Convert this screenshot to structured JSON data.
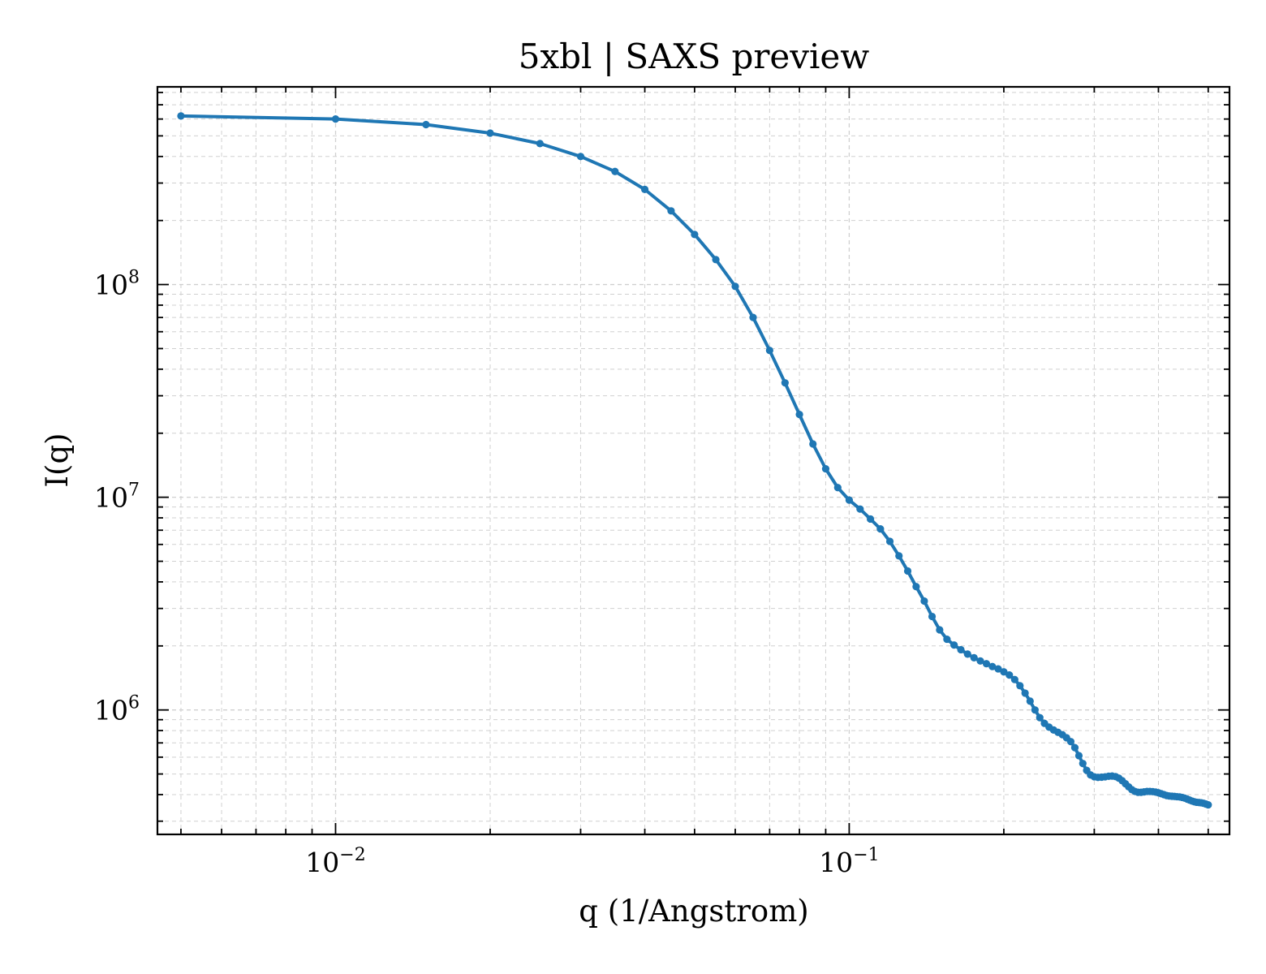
{
  "chart_data": {
    "type": "line",
    "title": "5xbl | SAXS preview",
    "xlabel": "q (1/Angstrom)",
    "ylabel": "I(q)",
    "xscale": "log",
    "yscale": "log",
    "xlim": [
      0.0045,
      0.55
    ],
    "ylim": [
      260000,
      850000000
    ],
    "grid": true,
    "legend": "none",
    "x_ticks": [
      {
        "base": "10",
        "exp": "−2",
        "value": 0.01
      },
      {
        "base": "10",
        "exp": "−1",
        "value": 0.1
      }
    ],
    "y_ticks": [
      {
        "base": "10",
        "exp": "6",
        "value": 1000000
      },
      {
        "base": "10",
        "exp": "7",
        "value": 10000000
      },
      {
        "base": "10",
        "exp": "8",
        "value": 100000000
      }
    ],
    "series": [
      {
        "color": "#1f77b4",
        "points": [
          [
            0.005,
            620000000
          ],
          [
            0.01,
            600000000
          ],
          [
            0.015,
            565000000
          ],
          [
            0.02,
            515000000
          ],
          [
            0.025,
            460000000
          ],
          [
            0.03,
            400000000
          ],
          [
            0.035,
            340000000
          ],
          [
            0.04,
            280000000
          ],
          [
            0.045,
            222000000
          ],
          [
            0.05,
            172000000
          ],
          [
            0.055,
            131000000
          ],
          [
            0.06,
            98000000
          ],
          [
            0.065,
            70000000
          ],
          [
            0.07,
            49000000
          ],
          [
            0.075,
            34500000
          ],
          [
            0.08,
            24500000
          ],
          [
            0.085,
            17800000
          ],
          [
            0.09,
            13600000
          ],
          [
            0.095,
            11100000
          ],
          [
            0.1,
            9700000
          ],
          [
            0.105,
            8800000
          ],
          [
            0.11,
            7900000
          ],
          [
            0.115,
            7100000
          ],
          [
            0.12,
            6200000
          ],
          [
            0.125,
            5300000
          ],
          [
            0.13,
            4500000
          ],
          [
            0.135,
            3800000
          ],
          [
            0.14,
            3250000
          ],
          [
            0.145,
            2750000
          ],
          [
            0.15,
            2380000
          ],
          [
            0.155,
            2150000
          ],
          [
            0.16,
            2020000
          ],
          [
            0.165,
            1920000
          ],
          [
            0.17,
            1830000
          ],
          [
            0.175,
            1760000
          ],
          [
            0.18,
            1700000
          ],
          [
            0.185,
            1650000
          ],
          [
            0.19,
            1600000
          ],
          [
            0.195,
            1560000
          ],
          [
            0.2,
            1510000
          ],
          [
            0.205,
            1460000
          ],
          [
            0.21,
            1390000
          ],
          [
            0.215,
            1300000
          ],
          [
            0.22,
            1200000
          ],
          [
            0.225,
            1100000
          ],
          [
            0.23,
            1000000
          ],
          [
            0.235,
            920000
          ],
          [
            0.24,
            865000
          ],
          [
            0.245,
            830000
          ],
          [
            0.25,
            805000
          ],
          [
            0.255,
            785000
          ],
          [
            0.26,
            765000
          ],
          [
            0.265,
            740000
          ],
          [
            0.27,
            710000
          ],
          [
            0.275,
            665000
          ],
          [
            0.28,
            610000
          ],
          [
            0.285,
            560000
          ],
          [
            0.29,
            520000
          ],
          [
            0.295,
            495000
          ],
          [
            0.3,
            485000
          ],
          [
            0.305,
            482000
          ],
          [
            0.31,
            483000
          ],
          [
            0.315,
            485000
          ],
          [
            0.32,
            488000
          ],
          [
            0.325,
            489000
          ],
          [
            0.33,
            486000
          ],
          [
            0.335,
            478000
          ],
          [
            0.34,
            465000
          ],
          [
            0.345,
            450000
          ],
          [
            0.35,
            435000
          ],
          [
            0.355,
            422000
          ],
          [
            0.36,
            414000
          ],
          [
            0.365,
            410000
          ],
          [
            0.37,
            410000
          ],
          [
            0.375,
            412000
          ],
          [
            0.38,
            414000
          ],
          [
            0.385,
            414000
          ],
          [
            0.39,
            413000
          ],
          [
            0.395,
            411000
          ],
          [
            0.4,
            408000
          ],
          [
            0.405,
            404000
          ],
          [
            0.41,
            400000
          ],
          [
            0.415,
            396000
          ],
          [
            0.42,
            394000
          ],
          [
            0.425,
            393000
          ],
          [
            0.43,
            392000
          ],
          [
            0.435,
            391000
          ],
          [
            0.44,
            390000
          ],
          [
            0.445,
            388000
          ],
          [
            0.45,
            385000
          ],
          [
            0.455,
            381000
          ],
          [
            0.46,
            377000
          ],
          [
            0.465,
            373000
          ],
          [
            0.47,
            370000
          ],
          [
            0.475,
            368000
          ],
          [
            0.48,
            367000
          ],
          [
            0.485,
            366000
          ],
          [
            0.49,
            364000
          ],
          [
            0.495,
            361000
          ],
          [
            0.5,
            358000
          ]
        ]
      }
    ]
  }
}
